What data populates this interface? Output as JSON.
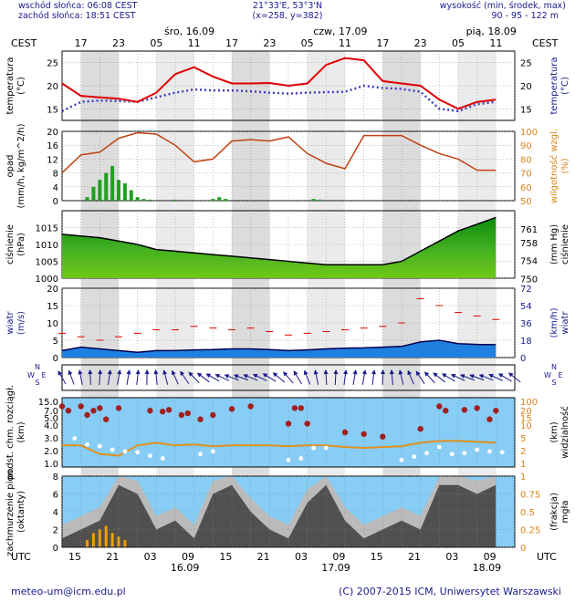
{
  "header": {
    "sunrise": "wschód słońca: 06:08 CEST",
    "sunset": "zachód słońca: 18:51 CEST",
    "coords": "21°33'E, 53°3'N",
    "grid": "(x=258, y=382)",
    "elevation_label": "wysokość (min, środek, max)",
    "elevation_values": "90 - 95 - 122 m"
  },
  "top_axis": {
    "tz": "CEST",
    "hours": [
      "17",
      "23",
      "05",
      "11",
      "17",
      "23",
      "05",
      "11",
      "17",
      "23",
      "05",
      "11"
    ],
    "days": [
      "śro, 16.09",
      "czw, 17.09",
      "pią, 18.09"
    ]
  },
  "bottom_axis": {
    "tz": "UTC",
    "hours": [
      "15",
      "21",
      "03",
      "09",
      "15",
      "21",
      "03",
      "09",
      "15",
      "21",
      "03",
      "09"
    ],
    "days": [
      "16.09",
      "17.09",
      "18.09"
    ]
  },
  "panel_labels": {
    "temperature_left": "temperatura\n(°C)",
    "temperature_right": "temperatura\n(°C)",
    "precip_left": "opad\n(mm/h, kg/m^2/h)",
    "humidity_right": "wilgotność wzgl.\n(%)",
    "pressure_left": "ciśnienie\n(hPa)",
    "pressure_right": "(mm Hg)\nciśnienie",
    "wind_left": "wiatr\n(m/s)",
    "wind_right": "(km/h)\nwiatr",
    "visibility_left": "podst. chm. rozciągł.\n(km)",
    "visibility_right": "(km)\nwidzialność",
    "cloud_left": "zachmurzenie pion.\n(oktanty)",
    "fog_right": "(frakcja)\nmgła"
  },
  "footer": {
    "email": "meteo-um@icm.edu.pl",
    "copyright": "(C) 2007-2015 ICM, Uniwersytet Warszawski"
  },
  "colors": {
    "temp": "#e00000",
    "dew": "#4040c0",
    "precip": "#20a020",
    "humidity": "#c04010",
    "pressure_fill": "#40b020",
    "wind_fill": "#2080e0",
    "gust": "#e00000",
    "vis_bg": "#87cdf5",
    "vis_line": "#e09020",
    "cloud_dark": "#505050",
    "fog_bar": "#f0a000"
  },
  "chart_data": [
    {
      "type": "line",
      "panel": "temperature",
      "x_unit": "hours from 16.09 15:00 UTC",
      "ylim": [
        12.5,
        27.5
      ],
      "yticks": [
        15,
        20,
        25
      ],
      "series": [
        {
          "name": "temperatura",
          "x": [
            0,
            3,
            6,
            9,
            12,
            15,
            18,
            21,
            24,
            27,
            30,
            33,
            36,
            39,
            42,
            45,
            48,
            51,
            54,
            57,
            60,
            63,
            66,
            69
          ],
          "values": [
            20.5,
            17.8,
            17.5,
            17.2,
            16.5,
            18.5,
            22.5,
            24,
            22,
            20.5,
            20.5,
            20.6,
            20,
            20.5,
            24.5,
            26,
            25.5,
            21,
            20.5,
            20,
            17,
            15,
            16.5,
            17
          ]
        },
        {
          "name": "temperatura punktu rosy",
          "x": [
            0,
            3,
            6,
            9,
            12,
            15,
            18,
            21,
            24,
            27,
            30,
            33,
            36,
            39,
            42,
            45,
            48,
            51,
            54,
            57,
            60,
            63,
            66,
            69
          ],
          "values": [
            14.5,
            16.5,
            16.8,
            16.7,
            16.5,
            17.5,
            18.5,
            19.2,
            19,
            19,
            18.8,
            18.5,
            18.3,
            18.5,
            18.6,
            18.7,
            20,
            19.5,
            19.3,
            18.7,
            15,
            14.5,
            16,
            16.5
          ]
        }
      ]
    },
    {
      "type": "bar",
      "panel": "precip",
      "ylim": [
        0,
        20
      ],
      "yticks": [
        0,
        4,
        8,
        12,
        16,
        20
      ],
      "x": [
        4,
        5,
        6,
        7,
        8,
        9,
        10,
        11,
        12,
        13,
        14,
        18,
        24,
        25,
        26,
        40,
        41
      ],
      "values": [
        1,
        4,
        6,
        8,
        10,
        6,
        5,
        3,
        1,
        0.5,
        0.3,
        0.3,
        0.5,
        1,
        0.5,
        0.5,
        0.3
      ]
    },
    {
      "type": "line",
      "panel": "humidity",
      "ylim": [
        50,
        100
      ],
      "yticks": [
        50,
        60,
        70,
        80,
        90,
        100
      ],
      "x": [
        0,
        3,
        6,
        9,
        12,
        15,
        18,
        21,
        24,
        27,
        30,
        33,
        36,
        39,
        42,
        45,
        48,
        51,
        54,
        57,
        60,
        63,
        66,
        69
      ],
      "values": [
        70,
        83,
        85,
        95,
        99,
        98,
        90,
        78,
        80,
        93,
        94,
        93,
        96,
        84,
        77,
        73,
        97,
        97,
        97,
        90,
        84,
        80,
        72,
        72
      ]
    },
    {
      "type": "area",
      "panel": "pressure",
      "ylim": [
        1000,
        1020
      ],
      "yticks": [
        1000,
        1005,
        1010,
        1015
      ],
      "yticks_right_mmhg": [
        750,
        754,
        758,
        761
      ],
      "x": [
        0,
        3,
        6,
        9,
        12,
        15,
        18,
        21,
        24,
        27,
        30,
        33,
        36,
        39,
        42,
        45,
        48,
        51,
        54,
        57,
        60,
        63,
        66,
        69
      ],
      "values": [
        1013,
        1012.5,
        1012,
        1011,
        1010,
        1008.5,
        1008,
        1007.5,
        1007,
        1006.5,
        1006,
        1005.5,
        1005,
        1004.5,
        1004,
        1004,
        1004,
        1004,
        1005,
        1008,
        1011,
        1014,
        1016,
        1018
      ]
    },
    {
      "type": "area",
      "panel": "wind",
      "ylim": [
        0,
        20
      ],
      "yticks": [
        0,
        5,
        10,
        15,
        20
      ],
      "yticks_right_kmh": [
        0,
        18,
        36,
        54,
        72
      ],
      "series": [
        {
          "name": "wiatr",
          "x": [
            0,
            3,
            6,
            9,
            12,
            15,
            18,
            21,
            24,
            27,
            30,
            33,
            36,
            39,
            42,
            45,
            48,
            51,
            54,
            57,
            60,
            63,
            66,
            69
          ],
          "values": [
            2,
            3,
            2.5,
            2,
            1.5,
            2,
            2,
            2.2,
            2.3,
            2.5,
            2.5,
            2.3,
            2,
            2.2,
            2.5,
            2.7,
            2.8,
            3,
            3.2,
            4.5,
            5,
            4,
            3.8,
            3.7
          ]
        },
        {
          "name": "porywy",
          "x": [
            0,
            3,
            6,
            9,
            12,
            15,
            18,
            21,
            24,
            27,
            30,
            33,
            36,
            39,
            42,
            45,
            48,
            51,
            54,
            57,
            60,
            63,
            66,
            69
          ],
          "values": [
            7,
            6,
            5,
            6,
            7,
            8,
            8,
            9,
            8.5,
            8,
            8.5,
            7.5,
            6.5,
            7,
            7.5,
            8,
            8.5,
            9,
            10,
            17,
            15,
            13,
            12,
            11
          ]
        }
      ]
    },
    {
      "type": "scatter",
      "panel": "visibility",
      "ylim": [
        0,
        15
      ],
      "yticks": [
        1.0,
        2.0,
        3.0,
        4.0,
        5.0,
        7.0,
        15.0
      ],
      "yticks_right": [
        1,
        2,
        5,
        10,
        15,
        20,
        100
      ],
      "series": [
        {
          "name": "widzialność",
          "x": [
            0,
            3,
            6,
            9,
            12,
            15,
            18,
            21,
            24,
            27,
            30,
            33,
            36,
            39,
            42,
            45,
            48,
            51,
            54,
            57,
            60,
            63,
            66,
            69
          ],
          "values": [
            2.5,
            2.5,
            1.5,
            1.3,
            2.5,
            2.8,
            2.5,
            2.6,
            2.4,
            2.5,
            2.5,
            2.5,
            2.4,
            2.5,
            2.5,
            2.3,
            2.2,
            2.3,
            2.4,
            2.8,
            3,
            3,
            2.9,
            2.8
          ]
        },
        {
          "name": "podstawa chmur",
          "x": [
            0,
            1,
            3,
            4,
            5,
            6,
            7,
            9,
            14,
            16,
            17,
            19,
            20,
            22,
            24,
            27,
            30,
            36,
            37,
            38,
            39,
            45,
            48,
            51,
            57,
            60,
            61,
            64,
            66,
            68,
            69
          ],
          "values": [
            7,
            6.5,
            7,
            6,
            6.5,
            6.8,
            5.5,
            6.8,
            6.5,
            6.4,
            6.6,
            6,
            6.2,
            5.5,
            6,
            6.7,
            7,
            5,
            6.8,
            6.8,
            5,
            4,
            3.8,
            3.5,
            4.4,
            7,
            6.5,
            6.6,
            6.8,
            5.5,
            6.5
          ]
        },
        {
          "name": "rozciągłość",
          "x": [
            2,
            4,
            6,
            8,
            10,
            12,
            14,
            16,
            22,
            24,
            36,
            38,
            40,
            42,
            54,
            56,
            58,
            60,
            62,
            64,
            66,
            68,
            70
          ],
          "values": [
            3.3,
            2.6,
            2.4,
            2,
            1.8,
            1.7,
            1.3,
            1,
            1.5,
            1.8,
            0.8,
            1,
            2.2,
            2.2,
            0.8,
            1.2,
            1.6,
            2.3,
            1.5,
            1.6,
            2,
            1.8,
            1.7
          ]
        }
      ]
    },
    {
      "type": "area",
      "panel": "cloud",
      "ylim": [
        0,
        8
      ],
      "yticks": [
        0,
        2,
        4,
        6,
        8
      ],
      "yticks_right": [
        0,
        0.25,
        0.5,
        0.75,
        1
      ],
      "series": [
        {
          "name": "zachmurzenie",
          "x": [
            0,
            3,
            6,
            9,
            12,
            15,
            18,
            21,
            24,
            27,
            30,
            33,
            36,
            39,
            42,
            45,
            48,
            51,
            54,
            57,
            60,
            63,
            66,
            69
          ],
          "values": [
            1,
            2,
            3,
            7,
            6,
            2,
            3,
            1,
            6,
            7,
            4,
            2,
            1,
            5,
            7,
            3,
            1,
            2,
            3,
            2,
            7,
            7,
            6,
            7
          ]
        },
        {
          "name": "mgła",
          "x": [
            4,
            5,
            6,
            7,
            8,
            9,
            10
          ],
          "values": [
            0.1,
            0.2,
            0.25,
            0.3,
            0.2,
            0.15,
            0.1
          ]
        }
      ]
    }
  ]
}
